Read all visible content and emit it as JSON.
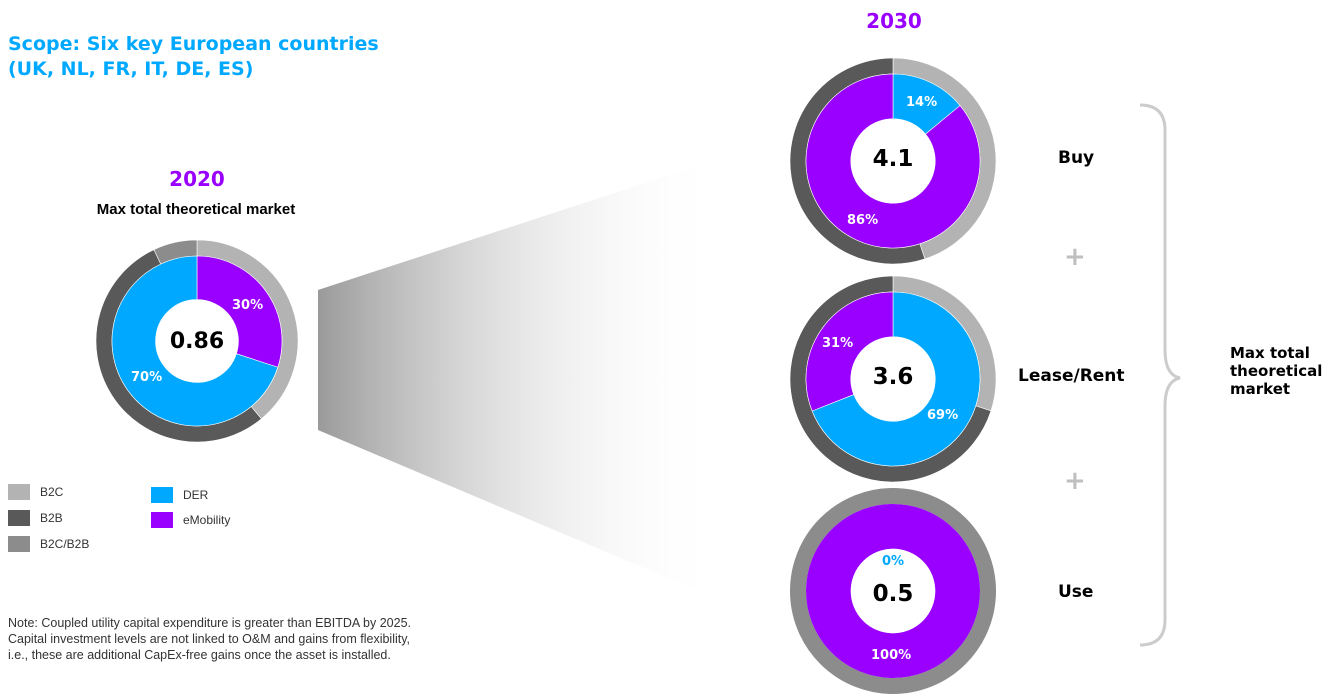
{
  "scope": {
    "line1": "Scope: Six key European countries",
    "line2": "(UK, NL, FR, IT, DE, ES)",
    "color": "#00A9FF"
  },
  "colors": {
    "b2c": "#b3b3b3",
    "b2b": "#595959",
    "b2c_b2b": "#8c8c8c",
    "der": "#00A9FF",
    "emobility": "#9900FF",
    "year": "#9900FF",
    "plus": "#bfbfbf"
  },
  "legend": [
    {
      "label": "B2C",
      "color": "#b3b3b3"
    },
    {
      "label": "B2B",
      "color": "#595959"
    },
    {
      "label": "B2C/B2B",
      "color": "#8c8c8c"
    },
    {
      "label": "DER",
      "color": "#00A9FF"
    },
    {
      "label": "eMobility",
      "color": "#9900FF"
    }
  ],
  "chart_data": [
    {
      "type": "pie",
      "year": "2020",
      "subtitle": "Max total theoretical market",
      "center_value": "0.86",
      "inner": [
        {
          "name": "eMobility",
          "value": 30,
          "label": "30%"
        },
        {
          "name": "DER",
          "value": 70,
          "label": "70%"
        }
      ],
      "outer": [
        {
          "name": "B2C",
          "value": 39
        },
        {
          "name": "B2B",
          "value": 54
        },
        {
          "name": "B2C/B2B",
          "value": 7
        }
      ]
    },
    {
      "type": "pie",
      "year": "2030",
      "label": "Buy",
      "center_value": "4.1",
      "inner": [
        {
          "name": "DER",
          "value": 14,
          "label": "14%"
        },
        {
          "name": "eMobility",
          "value": 86,
          "label": "86%"
        }
      ],
      "outer": [
        {
          "name": "B2C",
          "value": 45
        },
        {
          "name": "B2B",
          "value": 55
        }
      ]
    },
    {
      "type": "pie",
      "label": "Lease/Rent",
      "center_value": "3.6",
      "inner": [
        {
          "name": "DER",
          "value": 69,
          "label": "69%"
        },
        {
          "name": "eMobility",
          "value": 31,
          "label": "31%"
        }
      ],
      "outer": [
        {
          "name": "B2C",
          "value": 30
        },
        {
          "name": "B2B",
          "value": 70
        }
      ]
    },
    {
      "type": "pie",
      "label": "Use",
      "center_value": "0.5",
      "inner": [
        {
          "name": "DER",
          "value": 0,
          "label": "0%"
        },
        {
          "name": "eMobility",
          "value": 100,
          "label": "100%"
        }
      ],
      "outer": [
        {
          "name": "B2C/B2B",
          "value": 100
        }
      ]
    }
  ],
  "plus_sign": "+",
  "brace_label": {
    "line1": "Max total",
    "line2": "theoretical",
    "line3": "market"
  },
  "note": {
    "line1": "Note: Coupled utility capital expenditure is greater than EBITDA by 2025.",
    "line2": "Capital investment levels are not linked to O&M and gains from flexibility,",
    "line3": "i.e., these are additional CapEx-free gains once the asset is installed."
  }
}
